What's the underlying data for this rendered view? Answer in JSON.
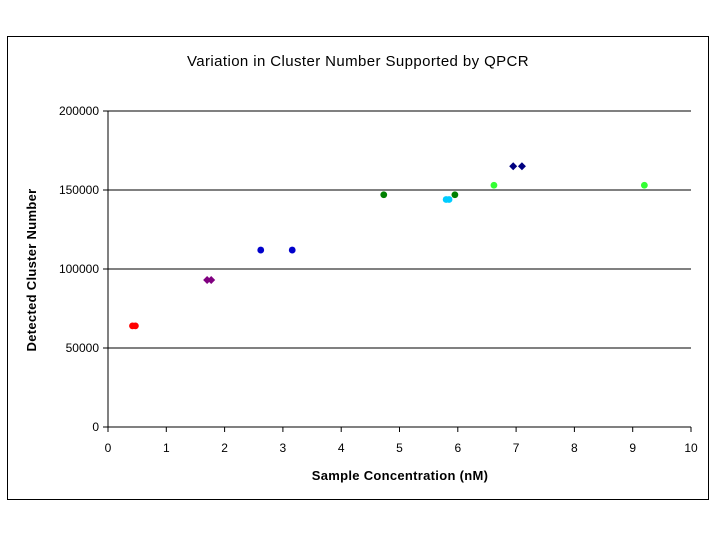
{
  "chart_data": {
    "type": "scatter",
    "title": "Variation in Cluster Number Supported by QPCR",
    "xlabel": "Sample Concentration (nM)",
    "ylabel": "Detected Cluster Number",
    "xlim": [
      0,
      10
    ],
    "ylim": [
      0,
      200000
    ],
    "x_ticks": [
      "0",
      "1",
      "2",
      "3",
      "4",
      "5",
      "6",
      "7",
      "8",
      "9",
      "10"
    ],
    "y_ticks": [
      "0",
      "50000",
      "100000",
      "150000",
      "200000"
    ],
    "grid": "horizontal major gridlines",
    "legend": "none",
    "series": [
      {
        "color": "#ff0000",
        "marker": "circle",
        "points": [
          [
            0.42,
            64000
          ],
          [
            0.47,
            64000
          ]
        ]
      },
      {
        "color": "#800080",
        "marker": "diamond",
        "points": [
          [
            1.7,
            93000
          ],
          [
            1.77,
            93000
          ]
        ]
      },
      {
        "color": "#0000cc",
        "marker": "circle",
        "points": [
          [
            2.62,
            112000
          ],
          [
            3.16,
            112000
          ]
        ]
      },
      {
        "color": "#008000",
        "marker": "circle",
        "points": [
          [
            4.73,
            147000
          ],
          [
            5.95,
            147000
          ]
        ]
      },
      {
        "color": "#00ccff",
        "marker": "circle",
        "points": [
          [
            5.8,
            144000
          ],
          [
            5.85,
            144000
          ]
        ]
      },
      {
        "color": "#33ff33",
        "marker": "circle",
        "points": [
          [
            6.62,
            153000
          ],
          [
            9.2,
            153000
          ]
        ]
      },
      {
        "color": "#000080",
        "marker": "diamond",
        "points": [
          [
            6.95,
            165000
          ],
          [
            7.1,
            165000
          ]
        ]
      }
    ]
  }
}
